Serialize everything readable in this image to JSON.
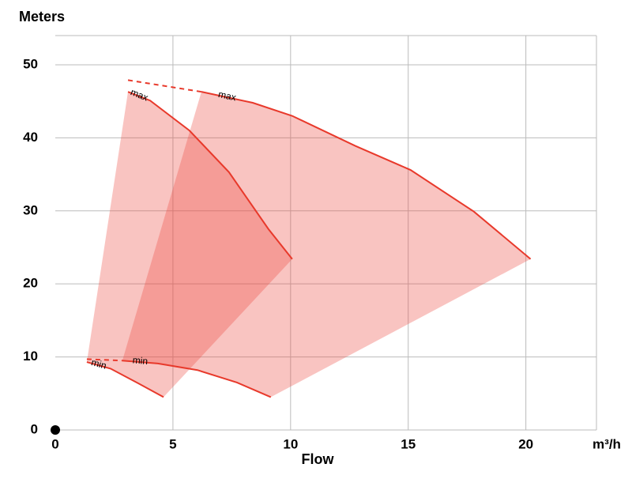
{
  "chart_data": {
    "type": "area",
    "y_label": "Meters",
    "x_label": "Flow",
    "x_unit": "m³/h",
    "xlim": [
      0,
      23
    ],
    "ylim": [
      0,
      54
    ],
    "xticks": [
      0,
      5,
      10,
      15,
      20
    ],
    "yticks": [
      0,
      10,
      20,
      30,
      40,
      50
    ],
    "grid": true,
    "fill_color": "#ec483e",
    "line_color": "#e8392b",
    "series": [
      {
        "max": {
          "label": "max",
          "x": [
            3.09,
            4.03,
            5.7,
            7.38,
            9.06,
            10.07
          ],
          "y": [
            46.3,
            45.1,
            41.0,
            35.3,
            27.5,
            23.4
          ]
        },
        "min": {
          "label": "min",
          "x": [
            1.34,
            2.35,
            3.52,
            4.6
          ],
          "y": [
            9.3,
            8.4,
            6.4,
            4.5
          ]
        }
      },
      {
        "max": {
          "label": "max",
          "x": [
            6.21,
            8.39,
            10.07,
            12.75,
            15.1,
            17.79,
            20.2
          ],
          "y": [
            46.3,
            44.8,
            43.0,
            38.9,
            35.6,
            29.9,
            23.4
          ]
        },
        "min": {
          "label": "min",
          "x": [
            2.85,
            4.36,
            6.04,
            7.72,
            9.16
          ],
          "y": [
            9.5,
            9.1,
            8.2,
            6.5,
            4.5
          ]
        }
      }
    ],
    "dashed": [
      {
        "x": [
          3.09,
          6.21
        ],
        "y": [
          47.9,
          46.3
        ]
      },
      {
        "x": [
          1.34,
          2.85
        ],
        "y": [
          9.7,
          9.5
        ]
      }
    ]
  }
}
